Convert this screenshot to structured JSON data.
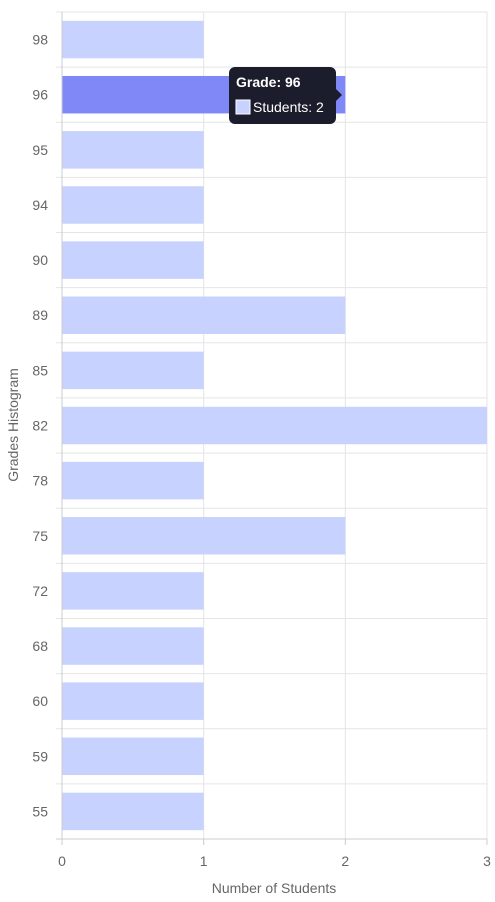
{
  "chart_data": {
    "type": "bar",
    "orientation": "horizontal",
    "categories": [
      "98",
      "96",
      "95",
      "94",
      "90",
      "89",
      "85",
      "82",
      "78",
      "75",
      "72",
      "68",
      "60",
      "59",
      "55"
    ],
    "series": [
      {
        "name": "Students",
        "values": [
          1,
          2,
          1,
          1,
          1,
          2,
          1,
          3,
          1,
          2,
          1,
          1,
          1,
          1,
          1
        ]
      }
    ],
    "title": "",
    "xlabel": "Number of Students",
    "ylabel": "Grades Histogram",
    "xlim": [
      0,
      3
    ],
    "xticks": [
      "0",
      "1",
      "2",
      "3"
    ],
    "grid": true,
    "legend": "none",
    "highlighted_category": "96",
    "tooltip": {
      "title": "Grade: 96",
      "body": "Students: 2"
    },
    "colors": {
      "bar": "#c8d2fe",
      "bar_highlight": "#8088f8",
      "grid": "#e5e5e5",
      "axis": "#cccccc",
      "text": "#666666",
      "tooltip_bg": "#1b1d2c",
      "tooltip_swatch": "#c8d2fe"
    }
  }
}
